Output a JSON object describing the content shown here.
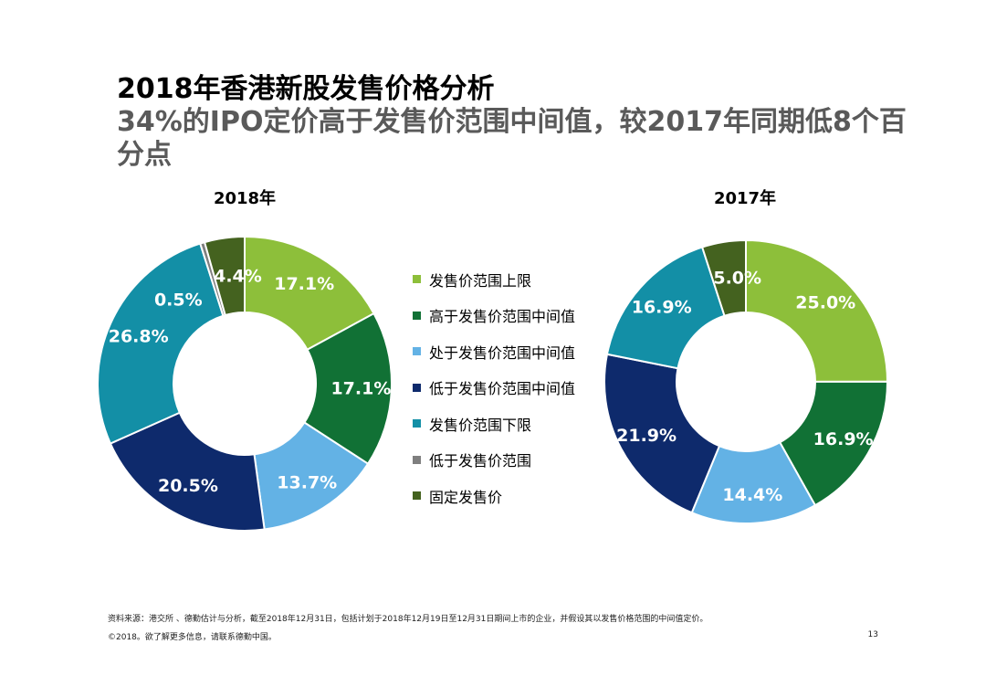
{
  "header": {
    "title": "2018年香港新股发售价格分析",
    "subtitle": "34%的IPO定价高于发售价范围中间值，较2017年同期低8个百分点"
  },
  "legend": [
    {
      "label": "发售价范围上限",
      "color": "#8dbf3a"
    },
    {
      "label": "高于发售价范围中间值",
      "color": "#117135"
    },
    {
      "label": "处于发售价范围中间值",
      "color": "#63b2e5"
    },
    {
      "label": "低于发售价范围中间值",
      "color": "#0e2a6c"
    },
    {
      "label": "发售价范围下限",
      "color": "#138fa6"
    },
    {
      "label": "低于发售价范围",
      "color": "#7f7f7f"
    },
    {
      "label": "固定发售价",
      "color": "#44621f"
    }
  ],
  "chart_data": [
    {
      "type": "pie",
      "title": "2018年",
      "categories": [
        "发售价范围上限",
        "高于发售价范围中间值",
        "处于发售价范围中间值",
        "低于发售价范围中间值",
        "发售价范围下限",
        "低于发售价范围",
        "固定发售价"
      ],
      "values": [
        17.1,
        17.1,
        13.7,
        20.5,
        26.8,
        0.5,
        4.4
      ],
      "labels": [
        "17.1%",
        "17.1%",
        "13.7%",
        "20.5%",
        "26.8%",
        "0.5%",
        "4.4%"
      ],
      "colors": [
        "#8dbf3a",
        "#117135",
        "#63b2e5",
        "#0e2a6c",
        "#138fa6",
        "#7f7f7f",
        "#44621f"
      ],
      "donut": true
    },
    {
      "type": "pie",
      "title": "2017年",
      "categories": [
        "发售价范围上限",
        "高于发售价范围中间值",
        "处于发售价范围中间值",
        "低于发售价范围中间值",
        "发售价范围下限",
        "固定发售价"
      ],
      "values": [
        25.0,
        16.9,
        14.4,
        21.9,
        16.9,
        5.0
      ],
      "labels": [
        "25.0%",
        "16.9%",
        "14.4%",
        "21.9%",
        "16.9%",
        "5.0%"
      ],
      "colors": [
        "#8dbf3a",
        "#117135",
        "#63b2e5",
        "#0e2a6c",
        "#138fa6",
        "#44621f"
      ],
      "donut": true
    }
  ],
  "footer": {
    "source": "资料来源：港交所 、德勤估计与分析，截至2018年12月31日，包括计划于2018年12月19日至12月31日期间上市的企业，并假设其以发售价格范围的中间值定价。",
    "copyright": "©2018。欲了解更多信息，请联系德勤中国。",
    "page": "13"
  }
}
